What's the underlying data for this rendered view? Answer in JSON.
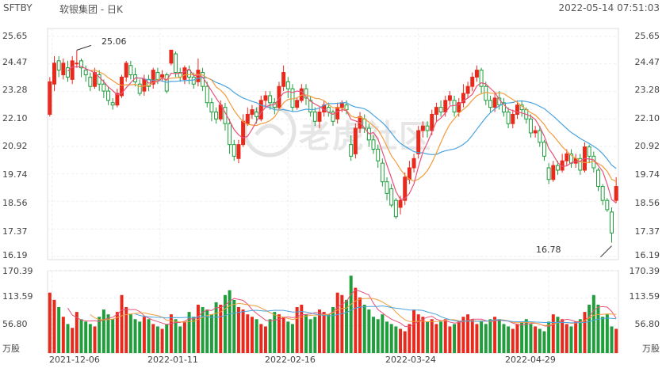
{
  "header": {
    "ticker": "SFTBY",
    "name": "软银集团 - 日K",
    "datetime": "2022-05-14 07:51:03"
  },
  "watermark": {
    "text": "老虎社区"
  },
  "price_axis_labels": [
    "25.65",
    "24.47",
    "23.28",
    "22.10",
    "20.92",
    "19.74",
    "18.56",
    "17.37",
    "16.19"
  ],
  "volume_axis_labels": [
    "170.39",
    "113.59",
    "56.80"
  ],
  "volume_unit": "万股",
  "date_labels": [
    "2021-12-06",
    "2022-01-11",
    "2022-02-16",
    "2022-03-24",
    "2022-04-29"
  ],
  "annotations": {
    "high": "25.06",
    "low": "16.78"
  },
  "colors": {
    "up": "#e8291c",
    "down": "#1f9e3b",
    "ma5": "#e8527a",
    "ma10": "#f39c3c",
    "ma20": "#4aa3df"
  },
  "chart_data": [
    {
      "type": "candlestick",
      "title": "",
      "ylim": [
        16.19,
        25.65
      ],
      "y_ticks": [
        25.65,
        24.47,
        23.28,
        22.1,
        20.92,
        19.74,
        18.56,
        17.37,
        16.19
      ],
      "x_tick_labels": [
        "2021-12-06",
        "2022-01-11",
        "2022-02-16",
        "2022-03-24",
        "2022-04-29"
      ],
      "max_label": 25.06,
      "min_label": 16.78,
      "candles": [
        [
          22.3,
          23.7,
          23.9,
          22.2
        ],
        [
          23.6,
          24.5,
          24.8,
          23.3
        ],
        [
          24.6,
          24.2,
          24.8,
          23.9
        ],
        [
          24.0,
          24.5,
          24.7,
          23.8
        ],
        [
          24.3,
          23.9,
          24.6,
          23.7
        ],
        [
          23.8,
          24.6,
          24.8,
          23.6
        ],
        [
          24.5,
          24.5,
          25.06,
          24.3
        ],
        [
          24.6,
          24.3,
          24.7,
          23.9
        ],
        [
          24.2,
          24.0,
          24.4,
          23.7
        ],
        [
          23.9,
          23.5,
          24.1,
          23.3
        ],
        [
          23.5,
          24.1,
          24.3,
          23.4
        ],
        [
          24.0,
          23.6,
          24.2,
          23.3
        ],
        [
          23.6,
          23.3,
          23.8,
          23.0
        ],
        [
          23.3,
          22.9,
          23.5,
          22.7
        ],
        [
          22.8,
          22.7,
          23.0,
          22.5
        ],
        [
          22.7,
          23.2,
          23.4,
          22.6
        ],
        [
          23.1,
          23.9,
          24.0,
          23.0
        ],
        [
          23.9,
          24.5,
          24.6,
          23.7
        ],
        [
          24.4,
          24.0,
          24.6,
          23.8
        ],
        [
          24.0,
          23.7,
          24.3,
          23.5
        ],
        [
          23.6,
          23.2,
          23.8,
          23.1
        ],
        [
          23.3,
          23.8,
          24.0,
          23.1
        ],
        [
          23.8,
          23.5,
          24.0,
          23.3
        ],
        [
          23.6,
          24.2,
          24.3,
          23.4
        ],
        [
          24.1,
          23.8,
          24.3,
          23.6
        ],
        [
          23.9,
          24.0,
          24.2,
          23.7
        ],
        [
          24.0,
          23.3,
          24.1,
          23.2
        ],
        [
          24.5,
          25.06,
          25.06,
          24.4
        ],
        [
          24.9,
          24.1,
          25.0,
          23.9
        ],
        [
          24.1,
          23.9,
          24.3,
          23.7
        ],
        [
          23.8,
          24.3,
          24.4,
          23.6
        ],
        [
          24.2,
          23.9,
          24.4,
          23.6
        ],
        [
          23.9,
          23.6,
          24.1,
          23.4
        ],
        [
          23.7,
          24.2,
          24.7,
          23.5
        ],
        [
          24.1,
          23.5,
          24.3,
          23.3
        ],
        [
          23.5,
          22.8,
          23.7,
          22.6
        ],
        [
          22.8,
          22.4,
          23.0,
          22.0
        ],
        [
          22.4,
          22.1,
          22.6,
          21.9
        ],
        [
          22.1,
          22.7,
          22.9,
          22.0
        ],
        [
          22.6,
          21.9,
          22.8,
          21.6
        ],
        [
          21.9,
          21.0,
          22.1,
          20.6
        ],
        [
          21.0,
          20.5,
          21.2,
          20.3
        ],
        [
          20.4,
          21.0,
          21.2,
          20.2
        ],
        [
          21.0,
          22.0,
          22.3,
          20.9
        ],
        [
          21.9,
          22.3,
          22.6,
          21.8
        ],
        [
          22.3,
          22.5,
          22.7,
          22.1
        ],
        [
          22.4,
          22.2,
          22.6,
          21.9
        ],
        [
          22.1,
          22.9,
          23.1,
          22.0
        ],
        [
          22.9,
          23.1,
          23.3,
          22.6
        ],
        [
          23.1,
          22.8,
          23.3,
          22.5
        ],
        [
          22.8,
          22.6,
          23.0,
          22.3
        ],
        [
          22.6,
          23.5,
          23.7,
          22.5
        ],
        [
          23.5,
          24.1,
          24.4,
          23.3
        ],
        [
          23.7,
          23.4,
          23.9,
          23.0
        ],
        [
          23.4,
          22.6,
          23.6,
          22.4
        ],
        [
          22.6,
          22.9,
          23.0,
          22.5
        ],
        [
          22.9,
          23.4,
          23.6,
          22.8
        ],
        [
          23.4,
          23.0,
          23.6,
          22.7
        ],
        [
          22.9,
          22.4,
          23.1,
          22.2
        ],
        [
          22.4,
          22.0,
          22.6,
          21.8
        ],
        [
          22.0,
          22.4,
          22.6,
          21.7
        ],
        [
          22.4,
          22.7,
          22.9,
          22.2
        ],
        [
          22.6,
          22.4,
          22.8,
          22.2
        ],
        [
          22.4,
          22.0,
          22.5,
          21.8
        ],
        [
          22.1,
          22.6,
          22.8,
          21.9
        ],
        [
          22.6,
          22.8,
          22.9,
          22.4
        ],
        [
          22.7,
          22.5,
          22.9,
          22.3
        ],
        [
          21.0,
          20.5,
          21.4,
          20.3
        ],
        [
          20.6,
          21.7,
          21.9,
          20.4
        ],
        [
          21.7,
          22.2,
          22.4,
          21.5
        ],
        [
          22.1,
          21.7,
          22.3,
          21.5
        ],
        [
          21.7,
          21.2,
          21.9,
          20.9
        ],
        [
          21.2,
          20.8,
          21.4,
          20.6
        ],
        [
          20.8,
          20.3,
          21.0,
          20.0
        ],
        [
          20.2,
          19.4,
          20.4,
          19.2
        ],
        [
          19.4,
          18.9,
          19.6,
          18.6
        ],
        [
          19.1,
          18.4,
          19.3,
          18.3
        ],
        [
          18.6,
          17.9,
          18.7,
          17.8
        ],
        [
          18.3,
          18.6,
          18.8,
          18.0
        ],
        [
          18.6,
          19.6,
          19.8,
          18.4
        ],
        [
          19.5,
          20.0,
          20.3,
          19.3
        ],
        [
          20.0,
          20.4,
          20.6,
          19.8
        ],
        [
          20.6,
          21.6,
          21.8,
          20.4
        ],
        [
          21.6,
          21.8,
          22.0,
          21.3
        ],
        [
          21.8,
          21.6,
          22.0,
          21.3
        ],
        [
          21.6,
          22.3,
          22.5,
          21.4
        ],
        [
          22.3,
          22.6,
          22.8,
          22.0
        ],
        [
          22.6,
          22.4,
          22.9,
          22.2
        ],
        [
          22.4,
          22.9,
          23.1,
          22.2
        ],
        [
          22.9,
          23.1,
          23.3,
          22.7
        ],
        [
          22.9,
          22.4,
          23.1,
          22.2
        ],
        [
          22.4,
          22.8,
          23.0,
          22.2
        ],
        [
          22.8,
          23.2,
          23.6,
          22.6
        ],
        [
          23.2,
          23.5,
          23.7,
          23.0
        ],
        [
          23.5,
          23.9,
          24.1,
          23.3
        ],
        [
          23.9,
          24.2,
          24.4,
          23.7
        ],
        [
          24.2,
          23.5,
          24.3,
          23.2
        ],
        [
          23.5,
          22.9,
          23.7,
          22.7
        ],
        [
          22.9,
          22.6,
          23.1,
          22.4
        ],
        [
          22.6,
          23.0,
          23.2,
          22.4
        ],
        [
          23.0,
          22.7,
          23.3,
          22.5
        ],
        [
          22.8,
          22.4,
          23.0,
          22.2
        ],
        [
          22.4,
          21.9,
          22.6,
          21.7
        ],
        [
          21.9,
          22.3,
          22.5,
          21.7
        ],
        [
          22.3,
          22.7,
          22.9,
          22.1
        ],
        [
          22.7,
          22.5,
          22.9,
          22.2
        ],
        [
          22.5,
          22.1,
          22.6,
          21.9
        ],
        [
          22.1,
          21.5,
          22.3,
          21.3
        ],
        [
          21.5,
          21.6,
          21.8,
          21.3
        ],
        [
          21.6,
          21.1,
          21.8,
          20.9
        ],
        [
          21.1,
          20.5,
          21.2,
          20.3
        ],
        [
          20.0,
          19.5,
          20.2,
          19.3
        ],
        [
          19.5,
          20.1,
          20.3,
          19.4
        ],
        [
          20.1,
          19.9,
          20.3,
          19.7
        ],
        [
          19.9,
          20.3,
          20.6,
          19.8
        ],
        [
          20.3,
          20.6,
          20.8,
          20.1
        ],
        [
          20.6,
          20.2,
          20.8,
          20.0
        ],
        [
          20.2,
          20.4,
          20.6,
          20.0
        ],
        [
          20.4,
          19.9,
          20.6,
          19.7
        ],
        [
          19.9,
          20.9,
          21.1,
          19.8
        ],
        [
          20.9,
          20.5,
          21.0,
          20.2
        ],
        [
          20.5,
          20.0,
          20.7,
          19.8
        ],
        [
          19.9,
          19.2,
          20.0,
          19.0
        ],
        [
          19.2,
          18.6,
          19.3,
          18.4
        ],
        [
          18.6,
          18.2,
          18.7,
          18.1
        ],
        [
          18.1,
          17.2,
          18.3,
          16.78
        ],
        [
          18.6,
          19.2,
          19.6,
          18.5
        ]
      ]
    },
    {
      "type": "bar",
      "title": "",
      "ylabel": "万股",
      "ylim": [
        0,
        170.39
      ],
      "y_ticks": [
        170.39,
        113.59,
        56.8
      ],
      "values": [
        125,
        110,
        95,
        75,
        60,
        52,
        85,
        70,
        65,
        60,
        55,
        75,
        90,
        80,
        70,
        85,
        120,
        95,
        80,
        70,
        65,
        75,
        70,
        60,
        55,
        50,
        60,
        80,
        70,
        55,
        65,
        85,
        75,
        100,
        95,
        90,
        80,
        105,
        100,
        120,
        130,
        110,
        95,
        90,
        80,
        75,
        70,
        60,
        55,
        70,
        85,
        80,
        75,
        65,
        60,
        95,
        100,
        80,
        70,
        75,
        90,
        85,
        80,
        95,
        125,
        120,
        110,
        160,
        135,
        115,
        100,
        90,
        75,
        70,
        80,
        65,
        60,
        55,
        50,
        45,
        60,
        90,
        80,
        75,
        65,
        70,
        60,
        65,
        70,
        55,
        60,
        65,
        75,
        80,
        70,
        60,
        65,
        60,
        70,
        75,
        70,
        60,
        55,
        50,
        60,
        65,
        70,
        60,
        55,
        50,
        45,
        65,
        80,
        75,
        70,
        60,
        55,
        65,
        70,
        85,
        100,
        120,
        100,
        75,
        80,
        55,
        50
      ]
    }
  ]
}
